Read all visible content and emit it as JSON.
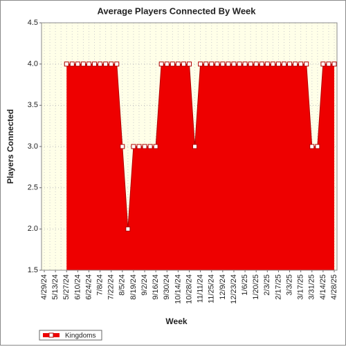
{
  "chart_data": {
    "type": "area",
    "title": "Average Players Connected By Week",
    "x_label": "Week",
    "y_label": "Players Connected",
    "categories": [
      "4/29/24",
      null,
      "5/13/24",
      null,
      "5/27/24",
      null,
      "6/10/24",
      null,
      "6/24/24",
      null,
      "7/8/24",
      null,
      "7/22/24",
      null,
      "8/5/24",
      null,
      "8/19/24",
      null,
      "9/2/24",
      null,
      "9/16/24",
      null,
      "9/30/24",
      null,
      "10/14/24",
      null,
      "10/28/24",
      null,
      "11/11/24",
      null,
      "11/25/24",
      null,
      "12/9/24",
      null,
      "12/23/24",
      null,
      "1/6/25",
      null,
      "1/20/25",
      null,
      "2/3/25",
      null,
      "2/17/25",
      null,
      "3/3/25",
      null,
      "3/17/25",
      null,
      "3/31/25",
      null,
      "4/14/25",
      null,
      "4/28/25"
    ],
    "series": [
      {
        "name": "Kingdoms",
        "color": "#ee0000",
        "values": [
          null,
          null,
          null,
          null,
          4,
          4,
          4,
          4,
          4,
          4,
          4,
          4,
          4,
          4,
          3,
          2,
          3,
          3,
          3,
          3,
          3,
          4,
          4,
          4,
          4,
          4,
          4,
          3,
          4,
          4,
          4,
          4,
          4,
          4,
          4,
          4,
          4,
          4,
          4,
          4,
          4,
          4,
          4,
          4,
          4,
          4,
          4,
          4,
          3,
          3,
          4,
          4,
          4
        ]
      }
    ],
    "ylim": [
      1.5,
      4.5
    ],
    "yticks": [
      {
        "value": 1.5,
        "label": "1.5"
      },
      {
        "value": 2,
        "label": "2.0"
      },
      {
        "value": 2.5,
        "label": "2.5"
      },
      {
        "value": 3,
        "label": "3.0"
      },
      {
        "value": 3.5,
        "label": "3.5"
      },
      {
        "value": 4,
        "label": "4.0"
      },
      {
        "value": 4.5,
        "label": "4.5"
      }
    ],
    "grid": true,
    "legend": "bottom-left"
  }
}
